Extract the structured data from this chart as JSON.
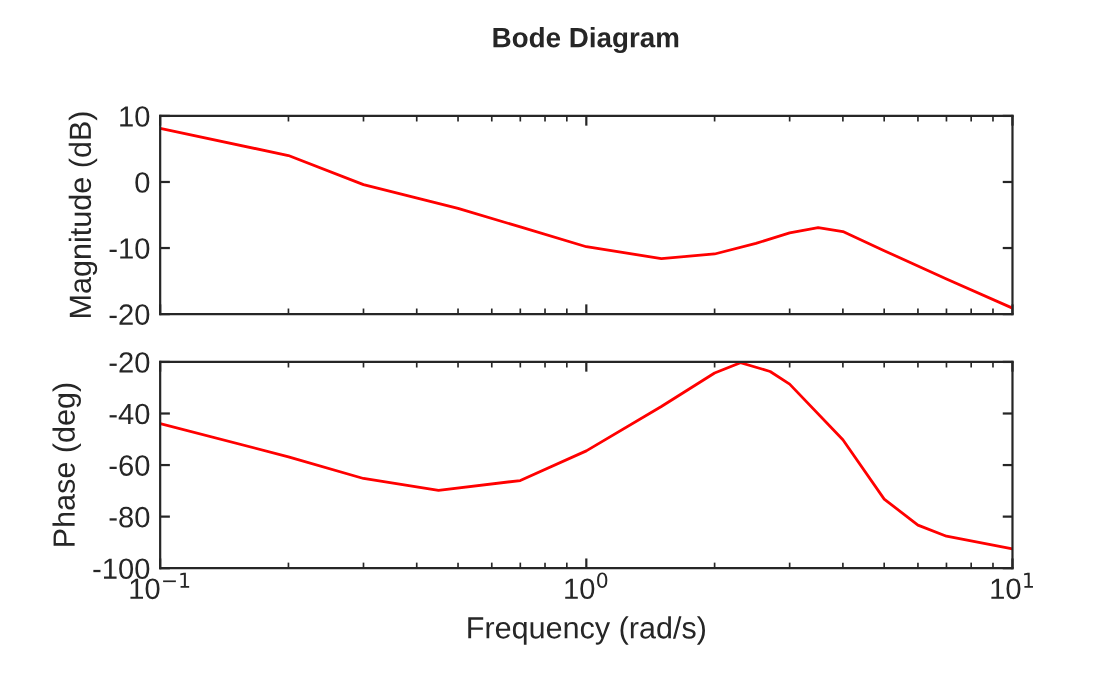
{
  "chart_data": [
    {
      "type": "line",
      "title": "Bode Diagram",
      "ylabel": "Magnitude (dB)",
      "log": "x",
      "grid": false,
      "legend": false,
      "tick_labels": "y",
      "x": [
        0.1,
        0.2,
        0.3,
        0.5,
        0.7,
        1,
        1.5,
        2,
        2.5,
        3,
        3.5,
        4,
        5,
        7,
        10
      ],
      "series": [
        {
          "color": "#ff0000",
          "values": [
            8.1,
            4.0,
            -0.4,
            -4.0,
            -6.8,
            -9.8,
            -11.6,
            -10.9,
            -9.3,
            -7.7,
            -6.9,
            -7.5,
            -10.4,
            -14.7,
            -19.1
          ]
        }
      ],
      "xlim": [
        0.1,
        10
      ],
      "xticks": [
        {
          "value": 0.1,
          "label": null
        },
        {
          "value": 1,
          "label": null
        },
        {
          "value": 10,
          "label": null
        }
      ],
      "ylim": [
        -20,
        10
      ],
      "yticks": [
        -20,
        -10,
        0,
        10
      ]
    },
    {
      "type": "line",
      "ylabel": "Phase (deg)",
      "xlabel": "Frequency (rad/s)",
      "log": "x",
      "grid": false,
      "legend": false,
      "x": [
        0.1,
        0.2,
        0.3,
        0.45,
        0.7,
        1,
        1.5,
        2,
        2.3,
        2.7,
        3,
        4,
        5,
        6,
        7,
        10
      ],
      "series": [
        {
          "color": "#ff0000",
          "values": [
            -43.9,
            -56.8,
            -65.2,
            -69.8,
            -66,
            -54.5,
            -37.3,
            -24.3,
            -20.3,
            -23.7,
            -28.6,
            -50.2,
            -73.2,
            -83.3,
            -87.6,
            -92.5
          ]
        }
      ],
      "xlim": [
        0.1,
        10
      ],
      "xticks": [
        {
          "value": 0.1,
          "label": "10$^{−1}$"
        },
        {
          "value": 1,
          "label": "10$^{0}$"
        },
        {
          "value": 10,
          "label": "10$^{1}$"
        }
      ],
      "ylim": [
        -100,
        -20
      ],
      "yticks": [
        -100,
        -80,
        -60,
        -40,
        -20
      ]
    }
  ]
}
